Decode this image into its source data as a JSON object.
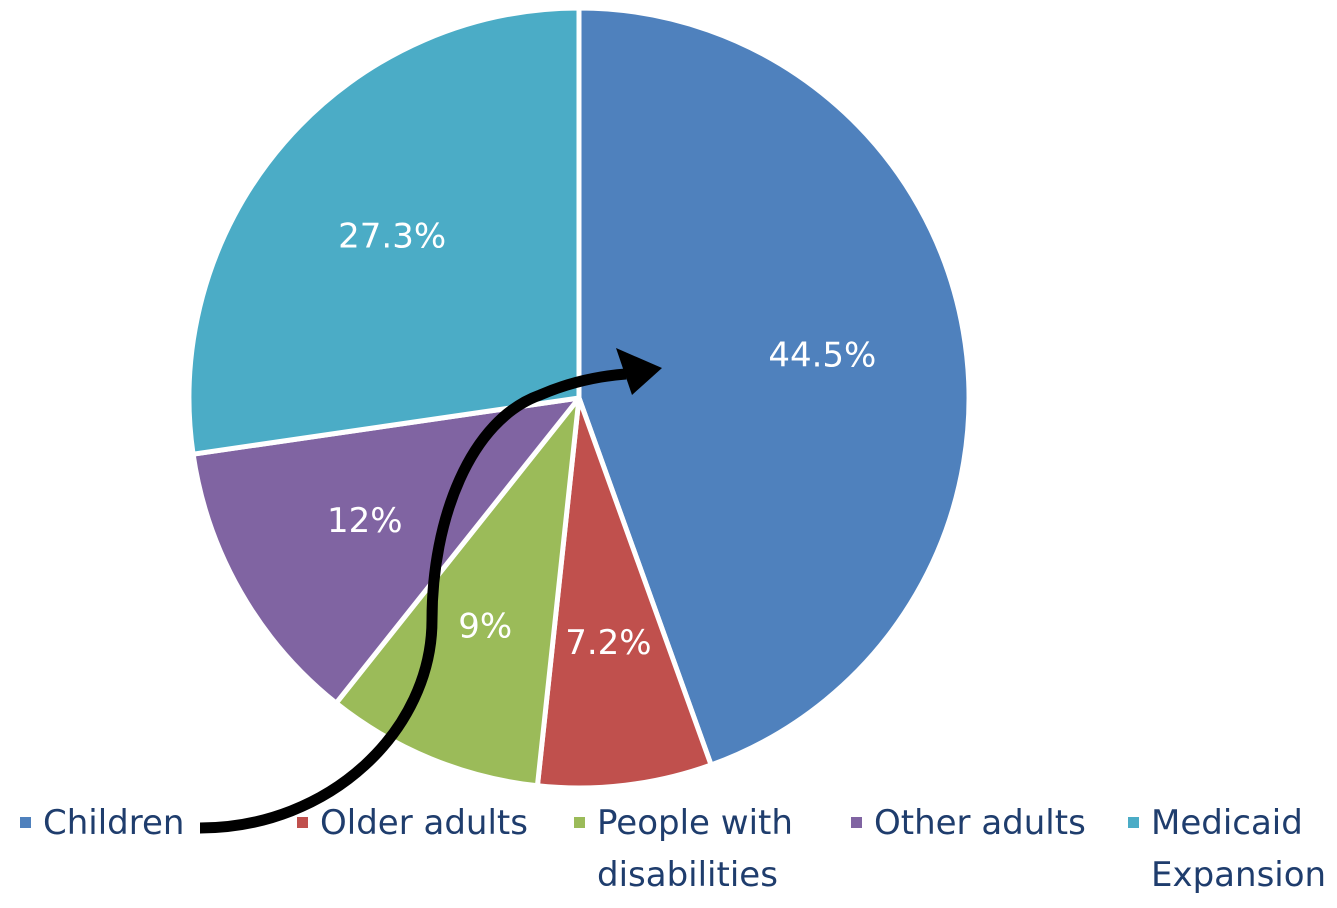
{
  "chart_data": {
    "type": "pie",
    "categories": [
      "Children",
      "Older adults",
      "People with disabilities",
      "Other adults",
      "Medicaid Expansion"
    ],
    "values": [
      44.5,
      7.2,
      9,
      12,
      27.3
    ],
    "data_labels": [
      "44.5%",
      "7.2%",
      "9%",
      "12%",
      "27.3%"
    ],
    "colors": [
      "#4f81bd",
      "#c0504d",
      "#9bbb59",
      "#8064a2",
      "#4bacc6"
    ],
    "start_angle_deg": 0,
    "direction": "clockwise",
    "legend_position": "bottom",
    "legend": [
      {
        "lines": [
          "Children"
        ],
        "color": "#4f81bd"
      },
      {
        "lines": [
          "Older adults"
        ],
        "color": "#c0504d"
      },
      {
        "lines": [
          "People with",
          "disabilities"
        ],
        "color": "#9bbb59"
      },
      {
        "lines": [
          "Other adults"
        ],
        "color": "#8064a2"
      },
      {
        "lines": [
          "Medicaid",
          "Expansion"
        ],
        "color": "#4bacc6"
      }
    ],
    "annotation": {
      "type": "curved-arrow",
      "from": "Children",
      "to": "44.5%",
      "color": "#000000"
    }
  }
}
